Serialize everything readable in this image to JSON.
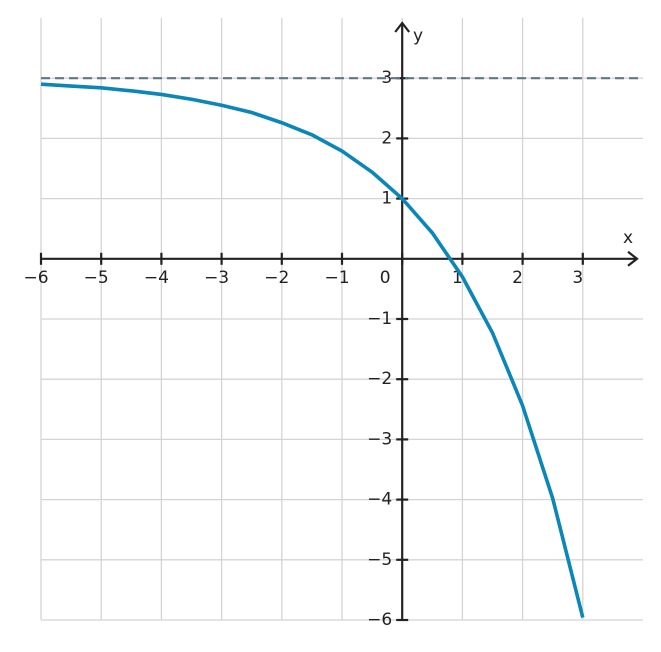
{
  "chart_data": {
    "type": "line",
    "x_label": "x",
    "y_label": "y",
    "xlim": [
      -6,
      4
    ],
    "ylim": [
      -6,
      4
    ],
    "xticks": [
      {
        "value": -6,
        "label": "−6"
      },
      {
        "value": -5,
        "label": "−5"
      },
      {
        "value": -4,
        "label": "−4"
      },
      {
        "value": -3,
        "label": "−3"
      },
      {
        "value": -2,
        "label": "−2"
      },
      {
        "value": -1,
        "label": "−1"
      },
      0,
      1,
      2,
      3
    ],
    "yticks": [
      {
        "value": -6,
        "label": "−6"
      },
      {
        "value": -5,
        "label": "−5"
      },
      {
        "value": -4,
        "label": "−4"
      },
      {
        "value": -3,
        "label": "−3"
      },
      {
        "value": -2,
        "label": "−2"
      },
      {
        "value": -1,
        "label": "−1"
      },
      1,
      2,
      3
    ],
    "grid": true,
    "series": [
      {
        "color": "#0a86b8",
        "dashed": false,
        "x": [
          -6,
          -5.5,
          -5,
          -4.5,
          -4,
          -3.5,
          -3,
          -2.5,
          -2,
          -1.5,
          -1,
          -0.5,
          0,
          0.5,
          1,
          1.5,
          2,
          2.5,
          3
        ],
        "values": [
          2.9,
          2.87,
          2.84,
          2.79,
          2.73,
          2.65,
          2.55,
          2.43,
          2.26,
          2.06,
          1.79,
          1.44,
          1,
          0.43,
          -0.3,
          -1.23,
          -2.44,
          -3.98,
          -5.96
        ]
      },
      {
        "color": "#5f7888",
        "dashed": true,
        "x": [
          -6,
          4
        ],
        "values": [
          3,
          3
        ]
      }
    ]
  }
}
